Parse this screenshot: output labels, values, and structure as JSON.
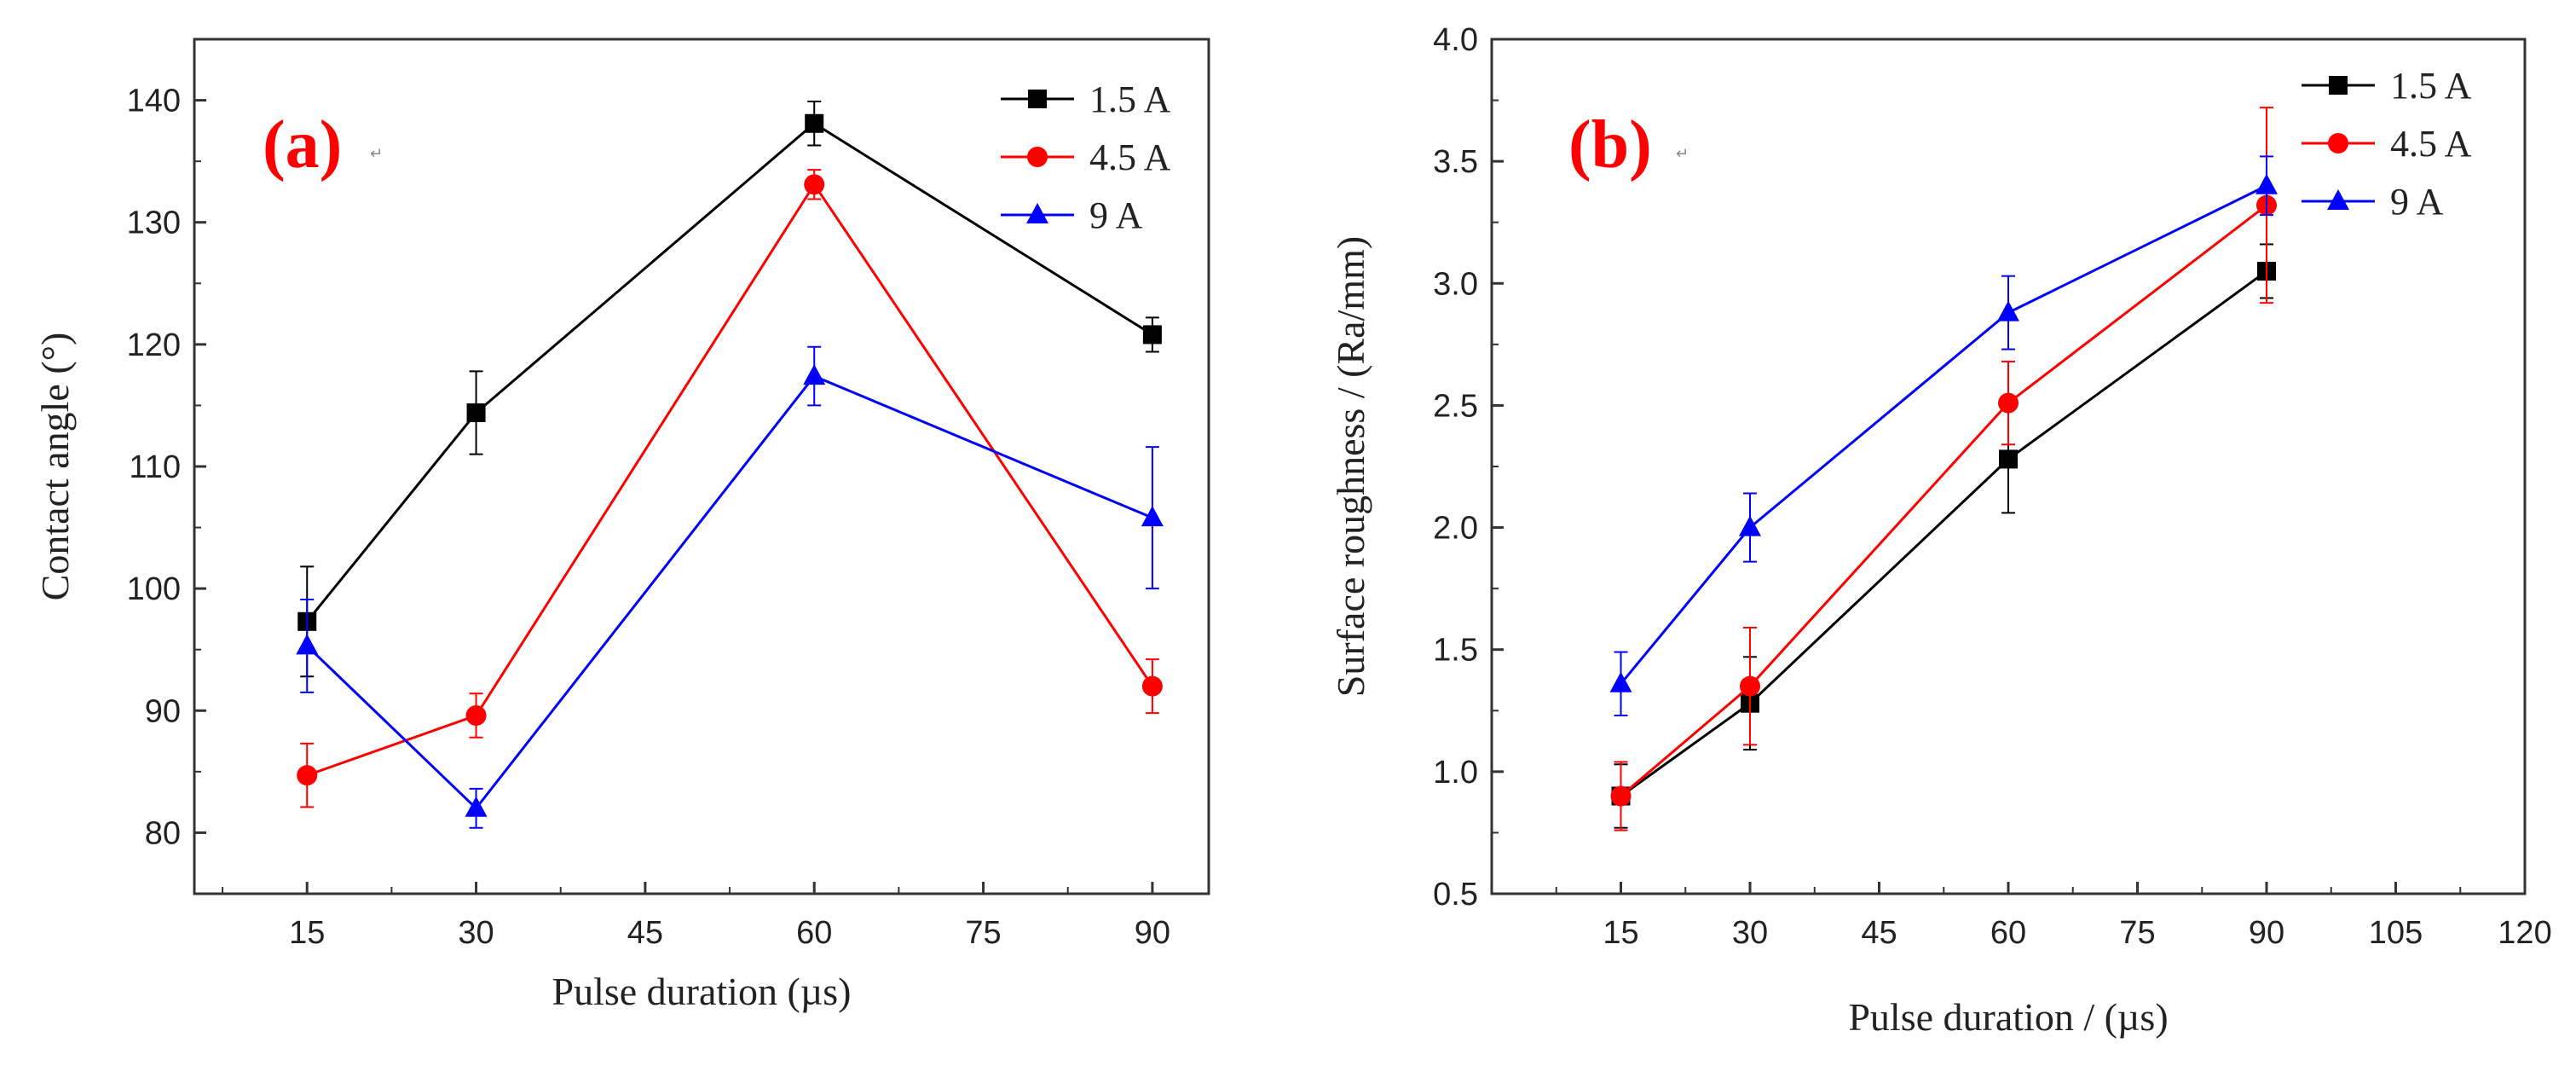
{
  "chart_data": [
    {
      "type": "line",
      "panel_label": "(a)",
      "panel_mark": "↵",
      "xlabel": "Pulse duration (µs)",
      "ylabel": "Contact angle (°)",
      "xlim": [
        5,
        95
      ],
      "ylim": [
        75,
        145
      ],
      "xticks": [
        15,
        30,
        45,
        60,
        75,
        90
      ],
      "xtick_labels": [
        "15",
        "30",
        "45",
        "60",
        "75",
        "90"
      ],
      "yticks": [
        80,
        90,
        100,
        110,
        120,
        130,
        140
      ],
      "ytick_labels": [
        "80",
        "90",
        "100",
        "110",
        "120",
        "130",
        "140"
      ],
      "legend_position": "top-right",
      "series": [
        {
          "name": "1.5 A",
          "color": "#000000",
          "marker": "square",
          "x": [
            15,
            30,
            60,
            90
          ],
          "y": [
            97.3,
            114.4,
            138.1,
            120.8
          ],
          "err": [
            4.5,
            3.4,
            1.8,
            1.4
          ]
        },
        {
          "name": "4.5 A",
          "color": "#ff0000",
          "marker": "circle",
          "x": [
            15,
            30,
            60,
            90
          ],
          "y": [
            84.7,
            89.6,
            133.1,
            92.0
          ],
          "err": [
            2.6,
            1.8,
            1.2,
            2.2
          ]
        },
        {
          "name": "9 A",
          "color": "#0000ff",
          "marker": "triangle",
          "x": [
            15,
            30,
            60,
            90
          ],
          "y": [
            95.3,
            82.0,
            117.4,
            105.8
          ],
          "err": [
            3.8,
            1.6,
            2.4,
            5.8
          ]
        }
      ]
    },
    {
      "type": "line",
      "panel_label": "(b)",
      "panel_mark": "↵",
      "xlabel": "Pulse duration / (µs)",
      "ylabel": "Surface roughness / (Ra/mm)",
      "xlim": [
        0,
        120
      ],
      "ylim": [
        0.5,
        4.0
      ],
      "xticks": [
        15,
        30,
        45,
        60,
        75,
        90,
        105,
        120
      ],
      "xtick_labels": [
        "15",
        "30",
        "45",
        "60",
        "75",
        "90",
        "105",
        "120"
      ],
      "yticks": [
        0.5,
        1.0,
        1.5,
        2.0,
        2.5,
        3.0,
        3.5,
        4.0
      ],
      "ytick_labels": [
        "0.5",
        "1.0",
        "1.5",
        "2.0",
        "2.5",
        "3.0",
        "3.5",
        "4.0"
      ],
      "legend_position": "top-right",
      "series": [
        {
          "name": "1.5 A",
          "color": "#000000",
          "marker": "square",
          "x": [
            15,
            30,
            60,
            90
          ],
          "y": [
            0.9,
            1.28,
            2.28,
            3.05
          ],
          "err": [
            0.13,
            0.19,
            0.22,
            0.11
          ]
        },
        {
          "name": "4.5 A",
          "color": "#ff0000",
          "marker": "circle",
          "x": [
            15,
            30,
            60,
            90
          ],
          "y": [
            0.9,
            1.35,
            2.51,
            3.32
          ],
          "err": [
            0.14,
            0.24,
            0.17,
            0.4
          ]
        },
        {
          "name": "9 A",
          "color": "#0000ff",
          "marker": "triangle",
          "x": [
            15,
            30,
            60,
            90
          ],
          "y": [
            1.36,
            2.0,
            2.88,
            3.4
          ],
          "err": [
            0.13,
            0.14,
            0.15,
            0.12
          ]
        }
      ]
    }
  ]
}
